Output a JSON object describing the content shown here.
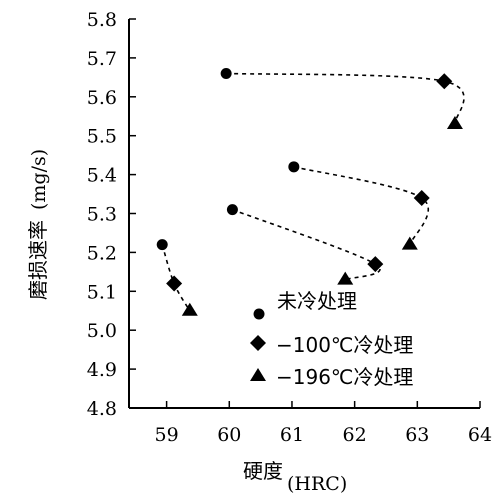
{
  "chart_data": {
    "type": "scatter",
    "xlabel_cn": "硬度",
    "xlabel_unit": "(HRC)",
    "ylabel_cn": "磨损速率",
    "ylabel_unit": "(mg/s)",
    "xlim": [
      58.4,
      64
    ],
    "ylim": [
      4.8,
      5.8
    ],
    "x_ticks": [
      59,
      60,
      61,
      62,
      63,
      64
    ],
    "y_ticks": [
      4.8,
      4.9,
      5.0,
      5.1,
      5.2,
      5.3,
      5.4,
      5.5,
      5.6,
      5.7,
      5.8
    ],
    "grid": false,
    "legend_position": "bottom-center",
    "series": [
      {
        "name": "未冷处理",
        "marker": "circle",
        "points": [
          [
            58.93,
            5.22
          ],
          [
            60.05,
            5.31
          ],
          [
            61.03,
            5.42
          ],
          [
            59.95,
            5.66
          ]
        ]
      },
      {
        "name": "−100℃冷处理",
        "marker": "diamond",
        "points": [
          [
            59.12,
            5.12
          ],
          [
            62.33,
            5.17
          ],
          [
            63.07,
            5.34
          ],
          [
            63.43,
            5.64
          ]
        ]
      },
      {
        "name": "−196℃冷处理",
        "marker": "triangle",
        "points": [
          [
            59.37,
            5.05
          ],
          [
            61.85,
            5.13
          ],
          [
            62.88,
            5.22
          ],
          [
            63.6,
            5.53
          ]
        ]
      }
    ],
    "trend_groups": [
      [
        [
          58.93,
          5.22
        ],
        [
          59.12,
          5.12
        ],
        [
          59.37,
          5.05
        ]
      ],
      [
        [
          60.05,
          5.31
        ],
        [
          62.33,
          5.17
        ],
        [
          61.85,
          5.13
        ]
      ],
      [
        [
          61.03,
          5.42
        ],
        [
          63.07,
          5.34
        ],
        [
          62.88,
          5.22
        ]
      ],
      [
        [
          59.95,
          5.66
        ],
        [
          63.43,
          5.64
        ],
        [
          63.6,
          5.53
        ]
      ]
    ],
    "colors": {
      "ink": "#000000"
    }
  },
  "legend": {
    "items": [
      {
        "marker": "circle",
        "label": "未冷处理"
      },
      {
        "marker": "diamond",
        "label": "−100℃冷处理"
      },
      {
        "marker": "triangle",
        "label": "−196℃冷处理"
      }
    ]
  }
}
